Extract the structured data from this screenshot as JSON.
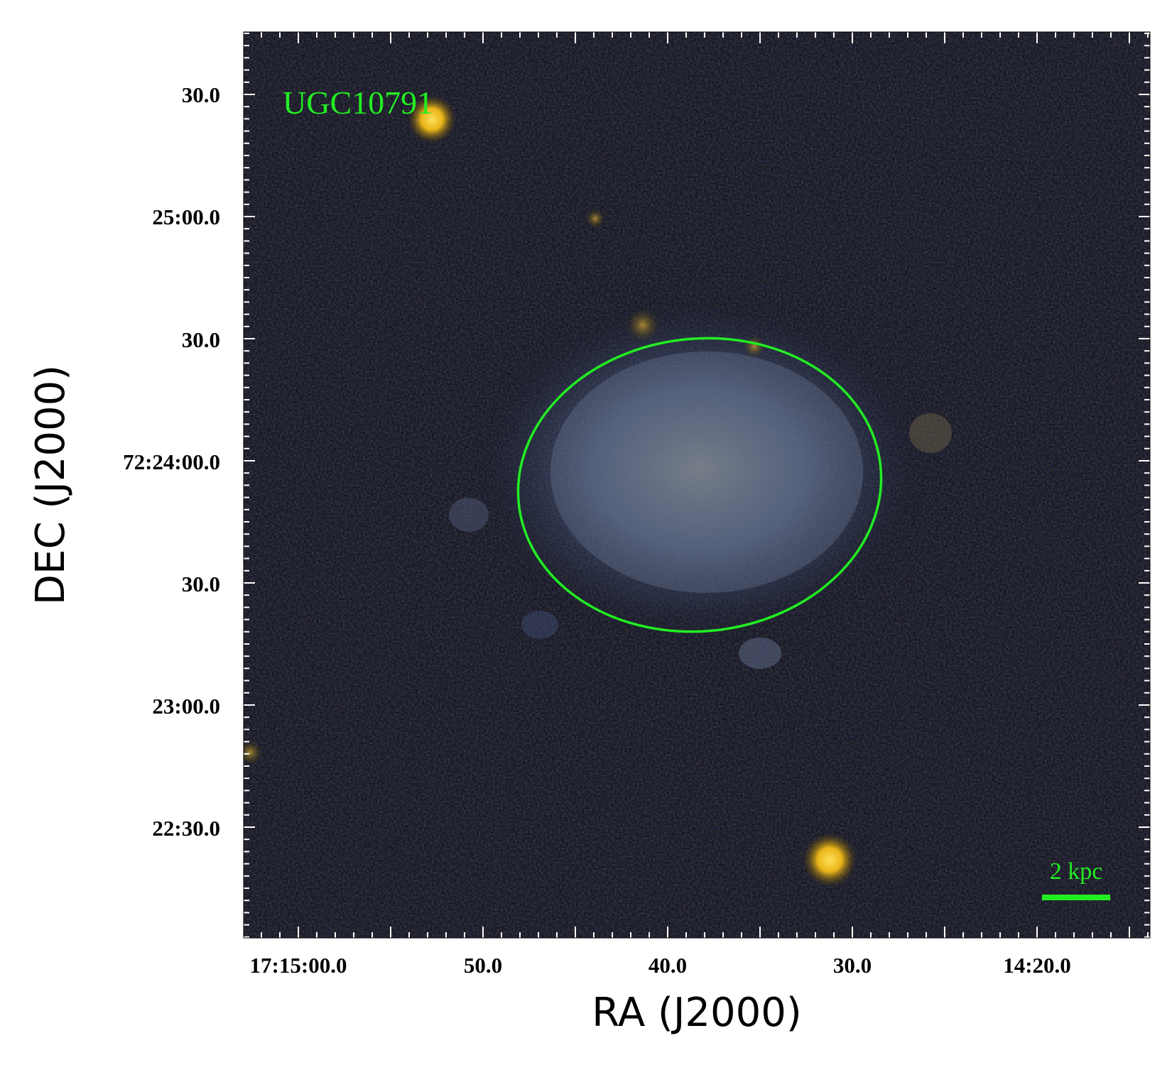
{
  "image": {
    "object_label": "UGC10791",
    "scale_bar_label": "2 kpc",
    "marker_color": "#22ee22",
    "aperture_shape": "ellipse"
  },
  "x_axis": {
    "title": "RA (J2000)",
    "tick_labels": [
      "17:15:00.0",
      "50.0",
      "40.0",
      "30.0",
      "14:20.0"
    ]
  },
  "y_axis": {
    "title": "DEC (J2000)",
    "tick_labels": [
      "30.0",
      "25:00.0",
      "30.0",
      "72:24:00.0",
      "30.0",
      "23:00.0",
      "22:30.0"
    ]
  },
  "colors": {
    "sky_background": "#0a0d14",
    "galaxy_blue": "#6a7fa8",
    "star_yellow": "#f0c020"
  }
}
